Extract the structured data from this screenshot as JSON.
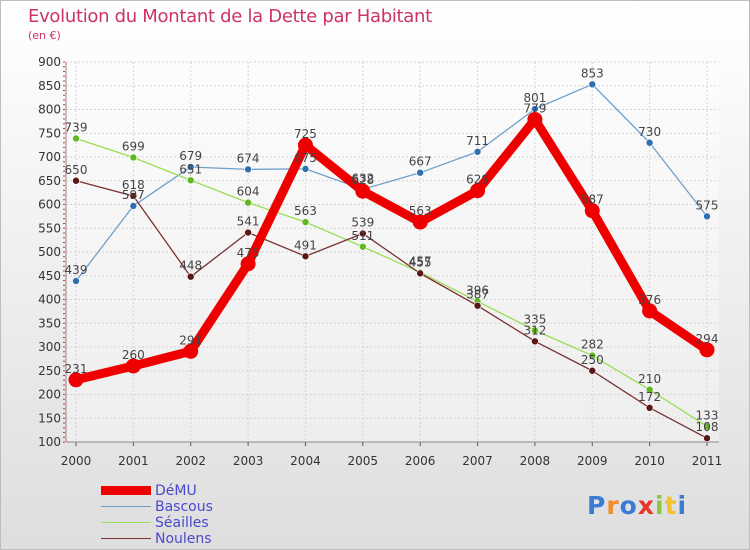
{
  "header": {
    "title": "Evolution du Montant de la Dette par Habitant",
    "unit": "(en €)"
  },
  "logo": {
    "text": "Proxiti",
    "colors": [
      "#3a7bd5",
      "#f28c28",
      "#3a7bd5",
      "#e8362a",
      "#8cc63f",
      "#f2c12e",
      "#3a7bd5"
    ]
  },
  "chart_data": {
    "type": "line",
    "title": "Evolution du Montant de la Dette par Habitant",
    "ylabel": "(en €)",
    "categories": [
      "2000",
      "2001",
      "2002",
      "2003",
      "2004",
      "2005",
      "2006",
      "2007",
      "2008",
      "2009",
      "2010",
      "2011"
    ],
    "ylim": [
      100,
      900
    ],
    "yticks": [
      100,
      150,
      200,
      250,
      300,
      350,
      400,
      450,
      500,
      550,
      600,
      650,
      700,
      750,
      800,
      850,
      900
    ],
    "grid": true,
    "legend_position": "bottom-left",
    "series": [
      {
        "name": "DéMU",
        "color": "#ee0000",
        "values": [
          231,
          260,
          291,
          475,
          725,
          628,
          563,
          629,
          779,
          587,
          376,
          294
        ]
      },
      {
        "name": "Bascous",
        "color": "#6ea0cc",
        "values": [
          439,
          597,
          679,
          674,
          675,
          632,
          667,
          711,
          801,
          853,
          730,
          575
        ]
      },
      {
        "name": "Séailles",
        "color": "#99dd55",
        "values": [
          739,
          699,
          651,
          604,
          563,
          511,
          457,
          396,
          335,
          282,
          210,
          133
        ]
      },
      {
        "name": "Noulens",
        "color": "#7a3030",
        "values": [
          650,
          618,
          448,
          541,
          491,
          539,
          455,
          387,
          312,
          250,
          172,
          108
        ]
      }
    ]
  }
}
